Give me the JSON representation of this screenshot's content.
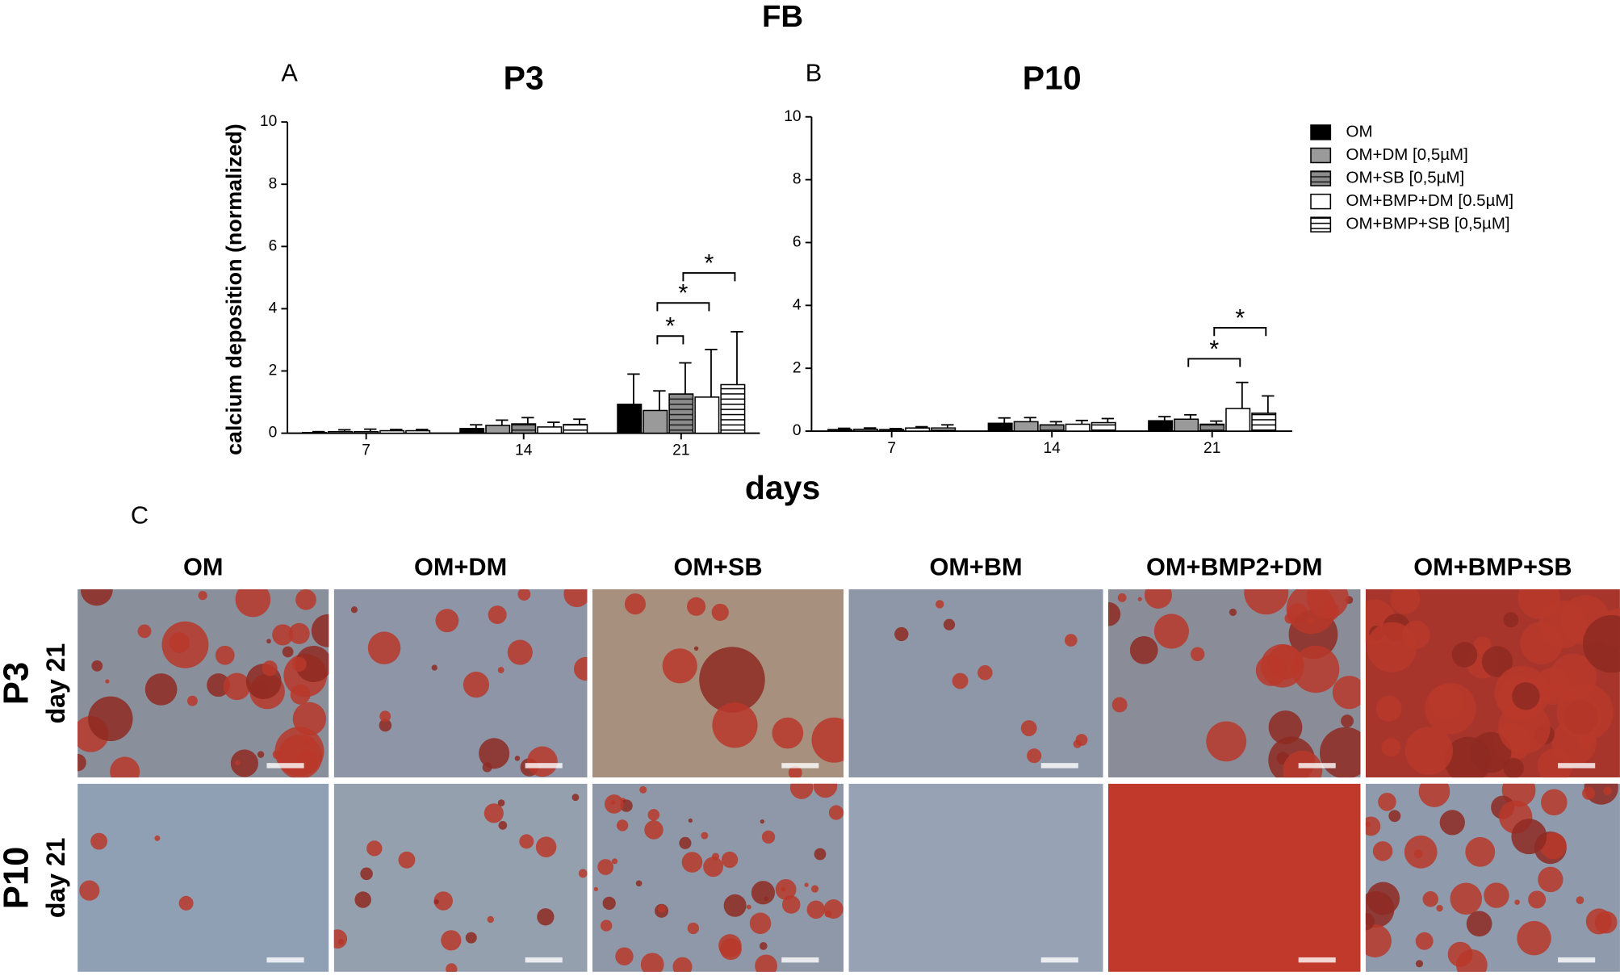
{
  "title": "FB",
  "panel_labels": [
    "A",
    "B",
    "C"
  ],
  "y_label": "calcium deposition (normalized)",
  "x_label": "days",
  "chart_data": [
    {
      "type": "bar",
      "title": "P3",
      "categories": [
        "7",
        "14",
        "21"
      ],
      "ylim": [
        0,
        10
      ],
      "yticks": [
        0,
        2,
        4,
        6,
        8,
        10
      ],
      "significance": [
        "*",
        "*",
        "*"
      ],
      "series": [
        {
          "color": "#000000",
          "values": [
            0.02,
            0.15,
            0.93
          ],
          "errors": [
            0.03,
            0.12,
            0.97
          ]
        },
        {
          "color": "#9a9a9a",
          "values": [
            0.05,
            0.25,
            0.73
          ],
          "errors": [
            0.06,
            0.17,
            0.63
          ]
        },
        {
          "color": "#8c8c8c",
          "pattern": "horizontal",
          "values": [
            0.05,
            0.3,
            1.26
          ],
          "errors": [
            0.08,
            0.2,
            1.0
          ]
        },
        {
          "color": "#ffffff",
          "values": [
            0.08,
            0.2,
            1.16
          ],
          "errors": [
            0.04,
            0.15,
            1.53
          ]
        },
        {
          "color": "#ffffff",
          "pattern": "horizontal",
          "values": [
            0.08,
            0.28,
            1.56
          ],
          "errors": [
            0.04,
            0.17,
            1.7
          ]
        }
      ]
    },
    {
      "type": "bar",
      "title": "P10",
      "categories": [
        "7",
        "14",
        "21"
      ],
      "ylim": [
        0,
        10
      ],
      "yticks": [
        0,
        2,
        4,
        6,
        8,
        10
      ],
      "significance": [
        "*",
        "*"
      ],
      "series": [
        {
          "name": "OM",
          "color": "#000000",
          "values": [
            0.05,
            0.25,
            0.33
          ],
          "errors": [
            0.04,
            0.17,
            0.13
          ]
        },
        {
          "name": "OM+DM [0,5µM]",
          "color": "#9a9a9a",
          "values": [
            0.06,
            0.3,
            0.38
          ],
          "errors": [
            0.04,
            0.13,
            0.14
          ]
        },
        {
          "name": "OM+SB [0,5µM]",
          "color": "#8c8c8c",
          "pattern": "horizontal",
          "values": [
            0.05,
            0.2,
            0.22
          ],
          "errors": [
            0.03,
            0.1,
            0.1
          ]
        },
        {
          "name": "OM+BMP+DM [0.5µM]",
          "color": "#ffffff",
          "values": [
            0.1,
            0.22,
            0.72
          ],
          "errors": [
            0.04,
            0.12,
            0.83
          ]
        },
        {
          "name": "OM+BMP+SB [0,5µM]",
          "color": "#ffffff",
          "pattern": "horizontal",
          "values": [
            0.1,
            0.27,
            0.57
          ],
          "errors": [
            0.1,
            0.13,
            0.55
          ]
        }
      ]
    }
  ],
  "panel_c": {
    "columns": [
      "OM",
      "OM+DM",
      "OM+SB",
      "OM+BM",
      "OM+BMP2+DM",
      "OM+BMP+SB"
    ],
    "rows": [
      {
        "passage": "P3",
        "day": "day 21"
      },
      {
        "passage": "P10",
        "day": "day 21"
      }
    ]
  }
}
